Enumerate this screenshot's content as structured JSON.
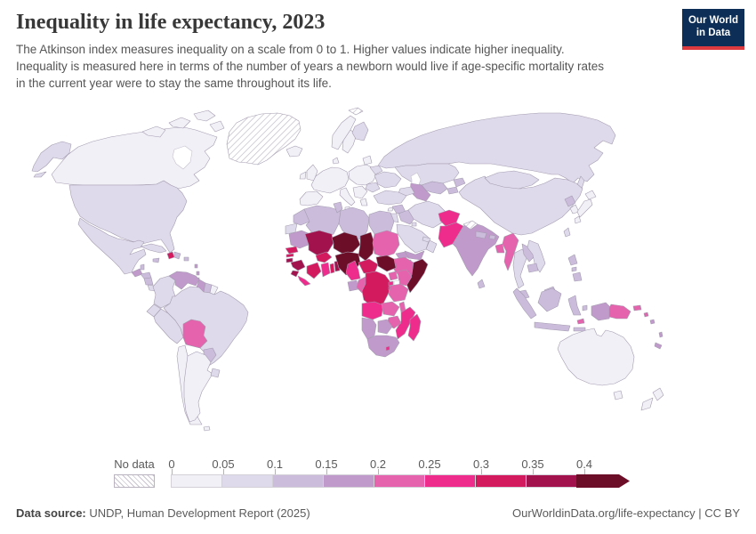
{
  "header": {
    "title": "Inequality in life expectancy, 2023",
    "subtitle_lines": [
      "The Atkinson index measures inequality on a scale from 0 to 1. Higher values indicate higher inequality.",
      "Inequality is measured here in terms of the number of years a newborn would live if age-specific mortality rates",
      "in the current year were to stay the same throughout its life."
    ]
  },
  "logo": {
    "line1": "Our World",
    "line2": "in Data",
    "bg": "#0d2e57",
    "accent": "#dc3a3f"
  },
  "legend": {
    "no_data_label": "No data",
    "ticks": [
      "0",
      "0.05",
      "0.1",
      "0.15",
      "0.2",
      "0.25",
      "0.3",
      "0.35",
      "0.4"
    ],
    "bins": [
      "0-0.05",
      "0.05-0.1",
      "0.1-0.15",
      "0.15-0.2",
      "0.2-0.25",
      "0.25-0.3",
      "0.3-0.35",
      "0.35-0.4",
      "0.4+"
    ]
  },
  "footer": {
    "source_label": "Data source:",
    "source_text": " UNDP, Human Development Report (2025)",
    "license_text": "OurWorldinData.org/life-expectancy | CC BY"
  },
  "chart_data": {
    "type": "choropleth",
    "title": "Inequality in life expectancy",
    "year": "2023",
    "metric": "Atkinson index (0 to 1)",
    "legend_ticks": [
      0,
      0.05,
      0.1,
      0.15,
      0.2,
      0.25,
      0.3,
      0.35,
      0.4
    ],
    "palette": {
      "0-0.05": "#f2f0f7",
      "0.05-0.1": "#dedaeb",
      "0.1-0.15": "#cbbcdc",
      "0.15-0.2": "#c09aca",
      "0.2-0.25": "#e463ac",
      "0.25-0.3": "#ee2c8c",
      "0.3-0.35": "#d41a5f",
      "0.35-0.4": "#a2134e",
      "0.4+": "#6d0e28",
      "no-data": "hatched"
    },
    "countries": {
      "canada": "0-0.05",
      "alaska": "0.05-0.1",
      "usa": "0.05-0.1",
      "mexico": "0.05-0.1",
      "greenland": "no-data",
      "iceland": "0-0.05",
      "guatemala": "0.15-0.2",
      "belize": "0.1-0.15",
      "honduras": "0.1-0.15",
      "nicaragua": "0.1-0.15",
      "costa-rica": "0.05-0.1",
      "panama": "0.1-0.15",
      "cuba": "0.05-0.1",
      "jamaica": "0.1-0.15",
      "haiti": "0.3-0.35",
      "dominican-republic": "0.1-0.15",
      "puerto-rico": "0.1-0.15",
      "lesser-antilles-1": "0.15-0.2",
      "lesser-antilles-2": "0.15-0.2",
      "trinidad": "0.1-0.15",
      "colombia": "0.05-0.1",
      "venezuela": "0.15-0.2",
      "guyana": "0.15-0.2",
      "suriname": "0.1-0.15",
      "french-guiana": "0-0.05",
      "ecuador": "0.05-0.1",
      "peru": "0.05-0.1",
      "brazil": "0.05-0.1",
      "bolivia": "0.2-0.25",
      "paraguay": "0.1-0.15",
      "chile": "0-0.05",
      "argentina": "0-0.05",
      "uruguay": "0.05-0.1",
      "falkland": "0-0.05",
      "uk": "0-0.05",
      "ireland": "0-0.05",
      "norway": "0-0.05",
      "sweden": "0-0.05",
      "finland": "0.05-0.1",
      "denmark": "0-0.05",
      "west-europe": "0-0.05",
      "iberia": "0-0.05",
      "italy": "0-0.05",
      "sicily": "0-0.05",
      "central-europe": "0-0.05",
      "balkans": "0-0.05",
      "greece": "0-0.05",
      "romania": "0.05-0.1",
      "ukraine": "0.05-0.1",
      "belarus": "0.05-0.1",
      "baltics": "0-0.05",
      "svalbard": "no-data",
      "russia": "0.05-0.1",
      "sakhalin": "0.05-0.1",
      "kazakhstan": "0.05-0.1",
      "uzbekistan": "0.1-0.15",
      "turkmenistan": "0.15-0.2",
      "kyrgyzstan": "0.1-0.15",
      "tajikistan": "0.1-0.15",
      "caucasus": "0.05-0.1",
      "turkey": "0.05-0.1",
      "cyprus": "0-0.05",
      "syria": "0.1-0.15",
      "levant": "0.05-0.1",
      "iraq": "0.1-0.15",
      "iran": "0.05-0.1",
      "saudi-arabia": "0.05-0.1",
      "kuwait": "0.05-0.1",
      "yemen": "0.15-0.2",
      "oman": "0.05-0.1",
      "uae-qatar": "0.05-0.1",
      "afghanistan": "0.25-0.3",
      "pakistan": "0.25-0.3",
      "india": "0.15-0.2",
      "kashmir": "no-data",
      "nepal": "0.1-0.15",
      "bhutan": "0.1-0.15",
      "bangladesh": "0.2-0.25",
      "sri-lanka": "0.1-0.15",
      "myanmar": "0.2-0.25",
      "thailand": "0.05-0.1",
      "laos": "0.1-0.15",
      "vietnam": "0.05-0.1",
      "cambodia": "0.1-0.15",
      "malaysia": "0.1-0.15",
      "malaysia-borneo": "0.1-0.15",
      "china": "0.05-0.1",
      "mongolia": "0.05-0.1",
      "north-korea": "0.1-0.15",
      "south-korea": "0-0.05",
      "japan-hokkaido": "0-0.05",
      "japan-honshu": "0-0.05",
      "japan-kyushu": "0-0.05",
      "taiwan": "0.05-0.1",
      "philippines-luzon": "0.1-0.15",
      "philippines-visayas": "0.1-0.15",
      "philippines-mindanao": "0.1-0.15",
      "sumatra": "0.1-0.15",
      "java": "0.1-0.15",
      "borneo": "0.1-0.15",
      "sulawesi": "0.1-0.15",
      "lesser-sunda": "0.1-0.15",
      "moluccas": "0.1-0.15",
      "west-papua": "0.15-0.2",
      "timor-leste": "0.2-0.25",
      "papua-new-guinea": "0.2-0.25",
      "new-britain": "0.2-0.25",
      "bougainville": "0.2-0.25",
      "solomon-islands": "0.15-0.2",
      "vanuatu": "0.15-0.2",
      "new-caledonia": "0.15-0.2",
      "australia": "0-0.05",
      "tasmania": "0-0.05",
      "nz-north": "0-0.05",
      "nz-south": "0-0.05",
      "morocco": "0.1-0.15",
      "western-sahara": "0.05-0.1",
      "algeria": "0.1-0.15",
      "tunisia": "0.1-0.15",
      "libya": "0.1-0.15",
      "egypt": "0.1-0.15",
      "mauritania": "0.15-0.2",
      "senegal": "0.3-0.35",
      "gambia": "0.3-0.35",
      "guinea-bissau": "0.35-0.4",
      "guinea": "0.35-0.4",
      "sierra-leone": "0.35-0.4",
      "liberia": "0.25-0.3",
      "mali": "0.35-0.4",
      "burkina-faso": "0.3-0.35",
      "cote-divoire": "0.3-0.35",
      "ghana": "0.25-0.3",
      "togo": "0.3-0.35",
      "benin": "0.35-0.4",
      "niger": "0.4+",
      "nigeria": "0.4+",
      "chad": "0.4+",
      "sudan": "0.2-0.25",
      "eritrea": "0.15-0.2",
      "djibouti": "0.2-0.25",
      "ethiopia": "0.2-0.25",
      "somalia": "0.4+",
      "south-sudan": "0.4+",
      "central-african-republic": "0.3-0.35",
      "cameroon": "0.25-0.3",
      "gabon": "0.15-0.2",
      "congo": "0.2-0.25",
      "drc": "0.3-0.35",
      "uganda": "0.2-0.25",
      "kenya": "0.2-0.25",
      "rwanda": "0.25-0.3",
      "burundi": "0.25-0.3",
      "tanzania": "0.2-0.25",
      "angola": "0.25-0.3",
      "zambia": "0.2-0.25",
      "malawi": "0.2-0.25",
      "mozambique": "0.25-0.3",
      "zimbabwe": "0.2-0.25",
      "botswana": "0.15-0.2",
      "namibia": "0.15-0.2",
      "south-africa": "0.15-0.2",
      "lesotho": "0.25-0.3",
      "madagascar": "0.25-0.3"
    }
  }
}
